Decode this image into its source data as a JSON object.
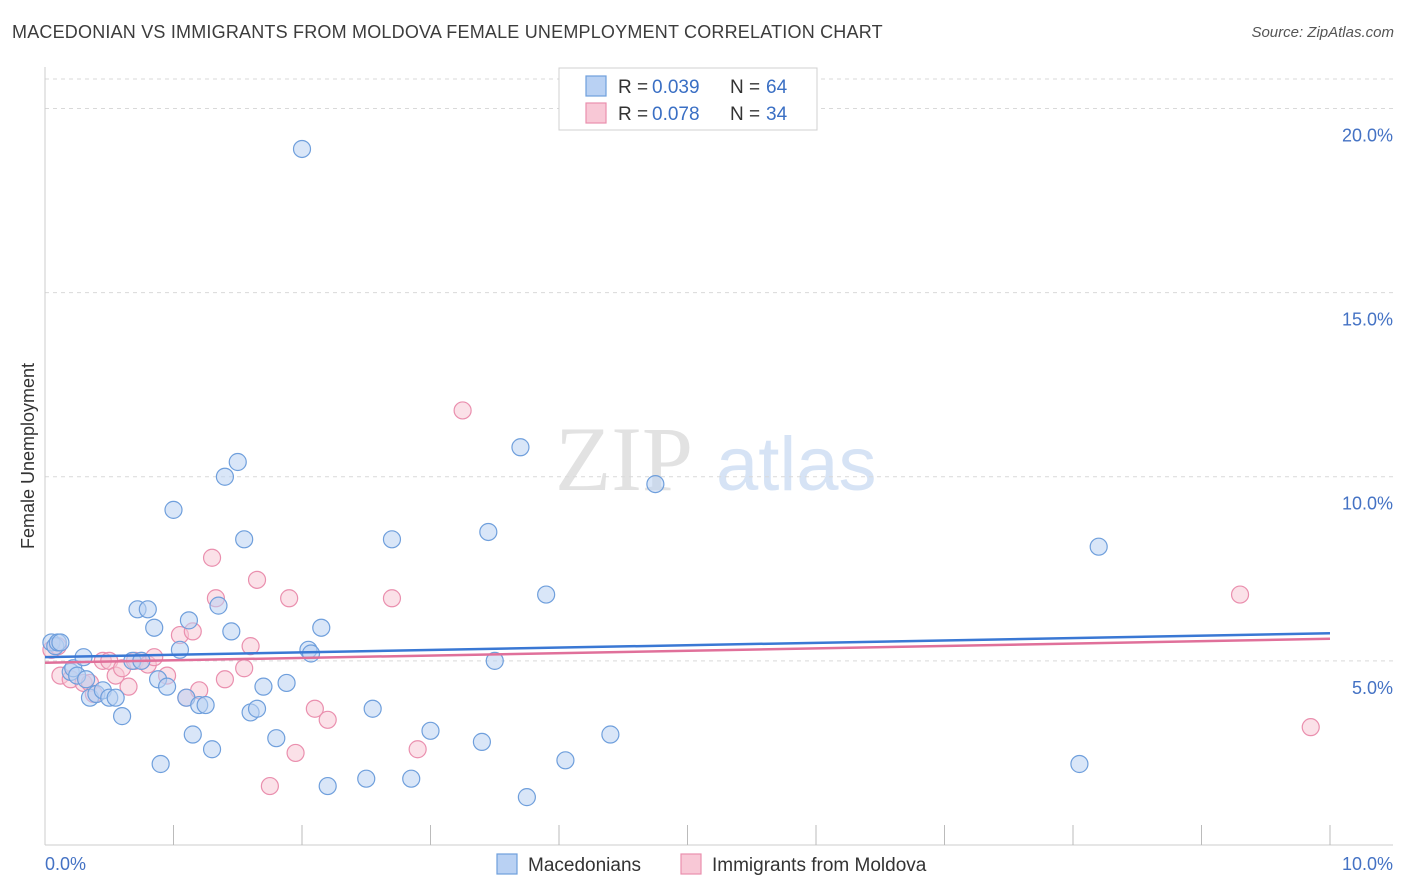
{
  "title": "MACEDONIAN VS IMMIGRANTS FROM MOLDOVA FEMALE UNEMPLOYMENT CORRELATION CHART",
  "source": "Source: ZipAtlas.com",
  "watermark": {
    "zip": "ZIP",
    "atlas": "atlas"
  },
  "colors": {
    "blue_fill": "#b9d1f3",
    "blue_stroke": "#6f9fdc",
    "blue_line": "#3a78d4",
    "pink_fill": "#f8c8d6",
    "pink_stroke": "#ea8fae",
    "pink_line": "#e0709a",
    "tick_text": "#4472c4",
    "grid": "#d9d9d9"
  },
  "legend_top": {
    "rows": [
      {
        "r_label": "R = ",
        "r_value": "0.039",
        "n_label": "N = ",
        "n_value": "64"
      },
      {
        "r_label": "R = ",
        "r_value": "0.078",
        "n_label": "N = ",
        "n_value": "34"
      }
    ]
  },
  "chart_data": {
    "type": "scatter",
    "title": "MACEDONIAN VS IMMIGRANTS FROM MOLDOVA FEMALE UNEMPLOYMENT CORRELATION CHART",
    "xlabel": "",
    "ylabel": "Female Unemployment",
    "xlim": [
      0,
      10
    ],
    "ylim": [
      0,
      20.8
    ],
    "x_tick_labels": [
      "0.0%",
      "10.0%"
    ],
    "y_ticks": [
      5,
      10,
      15,
      20
    ],
    "y_tick_labels": [
      "5.0%",
      "10.0%",
      "15.0%",
      "20.0%"
    ],
    "legend": [
      "Macedonians",
      "Immigrants from Moldova"
    ],
    "series": [
      {
        "name": "Macedonians",
        "r": 0.039,
        "n": 64,
        "trend": {
          "x": [
            0,
            10
          ],
          "y": [
            5.1,
            5.75
          ]
        },
        "points": [
          [
            0.05,
            5.5
          ],
          [
            0.08,
            5.4
          ],
          [
            0.1,
            5.5
          ],
          [
            0.12,
            5.5
          ],
          [
            0.2,
            4.7
          ],
          [
            0.22,
            4.8
          ],
          [
            0.25,
            4.6
          ],
          [
            0.3,
            5.1
          ],
          [
            0.32,
            4.5
          ],
          [
            0.35,
            4.0
          ],
          [
            0.4,
            4.1
          ],
          [
            0.45,
            4.2
          ],
          [
            0.5,
            4.0
          ],
          [
            0.55,
            4.0
          ],
          [
            0.6,
            3.5
          ],
          [
            0.68,
            5.0
          ],
          [
            0.72,
            6.4
          ],
          [
            0.75,
            5.0
          ],
          [
            0.8,
            6.4
          ],
          [
            0.85,
            5.9
          ],
          [
            0.88,
            4.5
          ],
          [
            0.9,
            2.2
          ],
          [
            0.95,
            4.3
          ],
          [
            1.0,
            9.1
          ],
          [
            1.05,
            5.3
          ],
          [
            1.1,
            4.0
          ],
          [
            1.12,
            6.1
          ],
          [
            1.15,
            3.0
          ],
          [
            1.2,
            3.8
          ],
          [
            1.25,
            3.8
          ],
          [
            1.3,
            2.6
          ],
          [
            1.35,
            6.5
          ],
          [
            1.4,
            10.0
          ],
          [
            1.45,
            5.8
          ],
          [
            1.5,
            10.4
          ],
          [
            1.55,
            8.3
          ],
          [
            1.6,
            3.6
          ],
          [
            1.65,
            3.7
          ],
          [
            1.7,
            4.3
          ],
          [
            1.8,
            2.9
          ],
          [
            1.88,
            4.4
          ],
          [
            2.0,
            18.9
          ],
          [
            2.05,
            5.3
          ],
          [
            2.07,
            5.2
          ],
          [
            2.15,
            5.9
          ],
          [
            2.2,
            1.6
          ],
          [
            2.5,
            1.8
          ],
          [
            2.55,
            3.7
          ],
          [
            2.7,
            8.3
          ],
          [
            2.85,
            1.8
          ],
          [
            3.0,
            3.1
          ],
          [
            3.4,
            2.8
          ],
          [
            3.45,
            8.5
          ],
          [
            3.5,
            5.0
          ],
          [
            3.7,
            10.8
          ],
          [
            3.75,
            1.3
          ],
          [
            3.9,
            6.8
          ],
          [
            4.05,
            2.3
          ],
          [
            4.4,
            3.0
          ],
          [
            4.75,
            9.8
          ],
          [
            8.2,
            8.1
          ],
          [
            8.05,
            2.2
          ]
        ]
      },
      {
        "name": "Immigrants from Moldova",
        "r": 0.078,
        "n": 34,
        "trend": {
          "x": [
            0,
            10
          ],
          "y": [
            4.95,
            5.6
          ]
        },
        "points": [
          [
            0.05,
            5.3
          ],
          [
            0.1,
            5.4
          ],
          [
            0.12,
            4.6
          ],
          [
            0.2,
            4.5
          ],
          [
            0.3,
            4.4
          ],
          [
            0.35,
            4.4
          ],
          [
            0.38,
            4.1
          ],
          [
            0.45,
            5.0
          ],
          [
            0.5,
            5.0
          ],
          [
            0.55,
            4.6
          ],
          [
            0.6,
            4.8
          ],
          [
            0.65,
            4.3
          ],
          [
            0.7,
            5.0
          ],
          [
            0.75,
            5.0
          ],
          [
            0.8,
            4.9
          ],
          [
            0.85,
            5.1
          ],
          [
            0.95,
            4.6
          ],
          [
            1.05,
            5.7
          ],
          [
            1.1,
            4.0
          ],
          [
            1.15,
            5.8
          ],
          [
            1.2,
            4.2
          ],
          [
            1.3,
            7.8
          ],
          [
            1.33,
            6.7
          ],
          [
            1.4,
            4.5
          ],
          [
            1.55,
            4.8
          ],
          [
            1.6,
            5.4
          ],
          [
            1.65,
            7.2
          ],
          [
            1.75,
            1.6
          ],
          [
            1.9,
            6.7
          ],
          [
            1.95,
            2.5
          ],
          [
            2.1,
            3.7
          ],
          [
            2.2,
            3.4
          ],
          [
            2.7,
            6.7
          ],
          [
            2.9,
            2.6
          ],
          [
            3.25,
            11.8
          ],
          [
            9.3,
            6.8
          ],
          [
            9.85,
            3.2
          ]
        ]
      }
    ]
  }
}
